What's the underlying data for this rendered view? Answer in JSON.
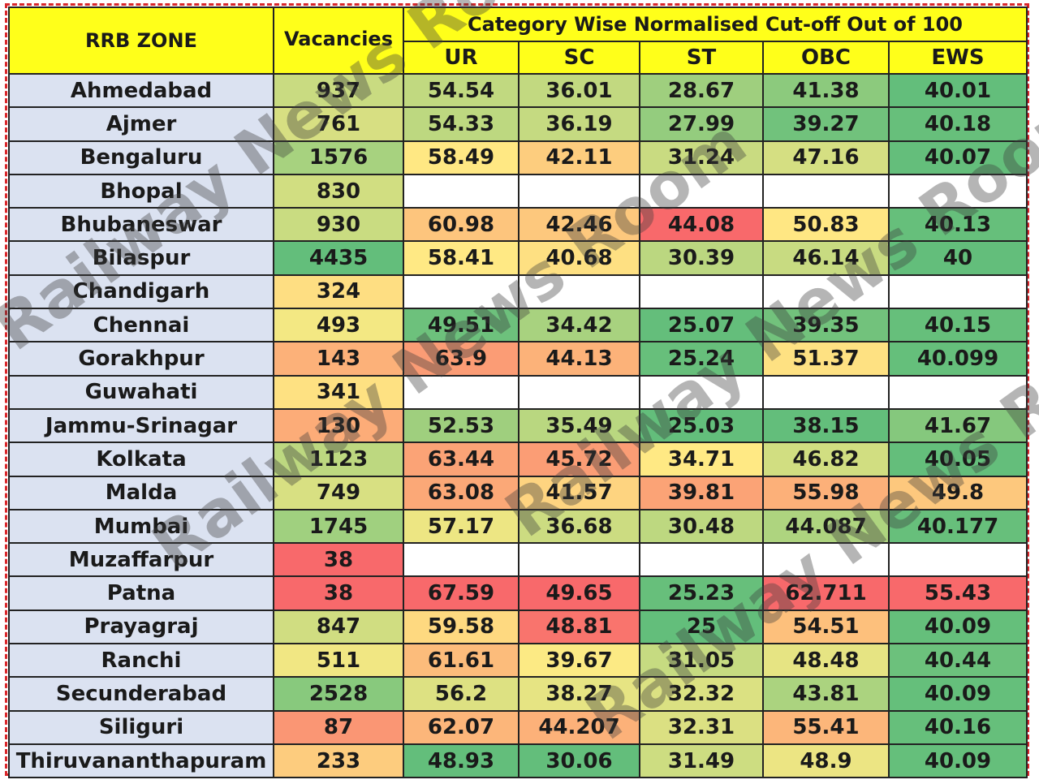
{
  "header": {
    "zone": "RRB ZONE",
    "vacancies": "Vacancies",
    "group": "Category Wise Normalised Cut-off Out of 100",
    "categories": [
      "UR",
      "SC",
      "ST",
      "OBC",
      "EWS"
    ]
  },
  "colors": {
    "header_yellow": "#ffff1a",
    "zone_bg": "#dbe2f1",
    "scale_green": "#5dbb63",
    "scale_yellow": "#fde882",
    "scale_red": "#f2656a"
  },
  "watermark": "Railway News Room",
  "rows": [
    {
      "zone": "Ahmedabad",
      "vac": "937",
      "ur": "54.54",
      "sc": "36.01",
      "st": "28.67",
      "obc": "41.38",
      "ews": "40.01"
    },
    {
      "zone": "Ajmer",
      "vac": "761",
      "ur": "54.33",
      "sc": "36.19",
      "st": "27.99",
      "obc": "39.27",
      "ews": "40.18"
    },
    {
      "zone": "Bengaluru",
      "vac": "1576",
      "ur": "58.49",
      "sc": "42.11",
      "st": "31.24",
      "obc": "47.16",
      "ews": "40.07"
    },
    {
      "zone": "Bhopal",
      "vac": "830",
      "ur": "",
      "sc": "",
      "st": "",
      "obc": "",
      "ews": ""
    },
    {
      "zone": "Bhubaneswar",
      "vac": "930",
      "ur": "60.98",
      "sc": "42.46",
      "st": "44.08",
      "obc": "50.83",
      "ews": "40.13"
    },
    {
      "zone": "Bilaspur",
      "vac": "4435",
      "ur": "58.41",
      "sc": "40.68",
      "st": "30.39",
      "obc": "46.14",
      "ews": "40"
    },
    {
      "zone": "Chandigarh",
      "vac": "324",
      "ur": "",
      "sc": "",
      "st": "",
      "obc": "",
      "ews": ""
    },
    {
      "zone": "Chennai",
      "vac": "493",
      "ur": "49.51",
      "sc": "34.42",
      "st": "25.07",
      "obc": "39.35",
      "ews": "40.15"
    },
    {
      "zone": "Gorakhpur",
      "vac": "143",
      "ur": "63.9",
      "sc": "44.13",
      "st": "25.24",
      "obc": "51.37",
      "ews": "40.099"
    },
    {
      "zone": "Guwahati",
      "vac": "341",
      "ur": "",
      "sc": "",
      "st": "",
      "obc": "",
      "ews": ""
    },
    {
      "zone": "Jammu-Srinagar",
      "vac": "130",
      "ur": "52.53",
      "sc": "35.49",
      "st": "25.03",
      "obc": "38.15",
      "ews": "41.67"
    },
    {
      "zone": "Kolkata",
      "vac": "1123",
      "ur": "63.44",
      "sc": "45.72",
      "st": "34.71",
      "obc": "46.82",
      "ews": "40.05"
    },
    {
      "zone": "Malda",
      "vac": "749",
      "ur": "63.08",
      "sc": "41.57",
      "st": "39.81",
      "obc": "55.98",
      "ews": "49.8"
    },
    {
      "zone": "Mumbai",
      "vac": "1745",
      "ur": "57.17",
      "sc": "36.68",
      "st": "30.48",
      "obc": "44.087",
      "ews": "40.177"
    },
    {
      "zone": "Muzaffarpur",
      "vac": "38",
      "ur": "",
      "sc": "",
      "st": "",
      "obc": "",
      "ews": ""
    },
    {
      "zone": "Patna",
      "vac": "38",
      "ur": "67.59",
      "sc": "49.65",
      "st": "25.23",
      "obc": "62.711",
      "ews": "55.43"
    },
    {
      "zone": "Prayagraj",
      "vac": "847",
      "ur": "59.58",
      "sc": "48.81",
      "st": "25",
      "obc": "54.51",
      "ews": "40.09"
    },
    {
      "zone": "Ranchi",
      "vac": "511",
      "ur": "61.61",
      "sc": "39.67",
      "st": "31.05",
      "obc": "48.48",
      "ews": "40.44"
    },
    {
      "zone": "Secunderabad",
      "vac": "2528",
      "ur": "56.2",
      "sc": "38.27",
      "st": "32.32",
      "obc": "43.81",
      "ews": "40.09"
    },
    {
      "zone": "Siliguri",
      "vac": "87",
      "ur": "62.07",
      "sc": "44.207",
      "st": "32.31",
      "obc": "55.41",
      "ews": "40.16"
    },
    {
      "zone": "Thiruvananthapuram",
      "vac": "233",
      "ur": "48.93",
      "sc": "30.06",
      "st": "31.49",
      "obc": "48.9",
      "ews": "40.09"
    }
  ]
}
